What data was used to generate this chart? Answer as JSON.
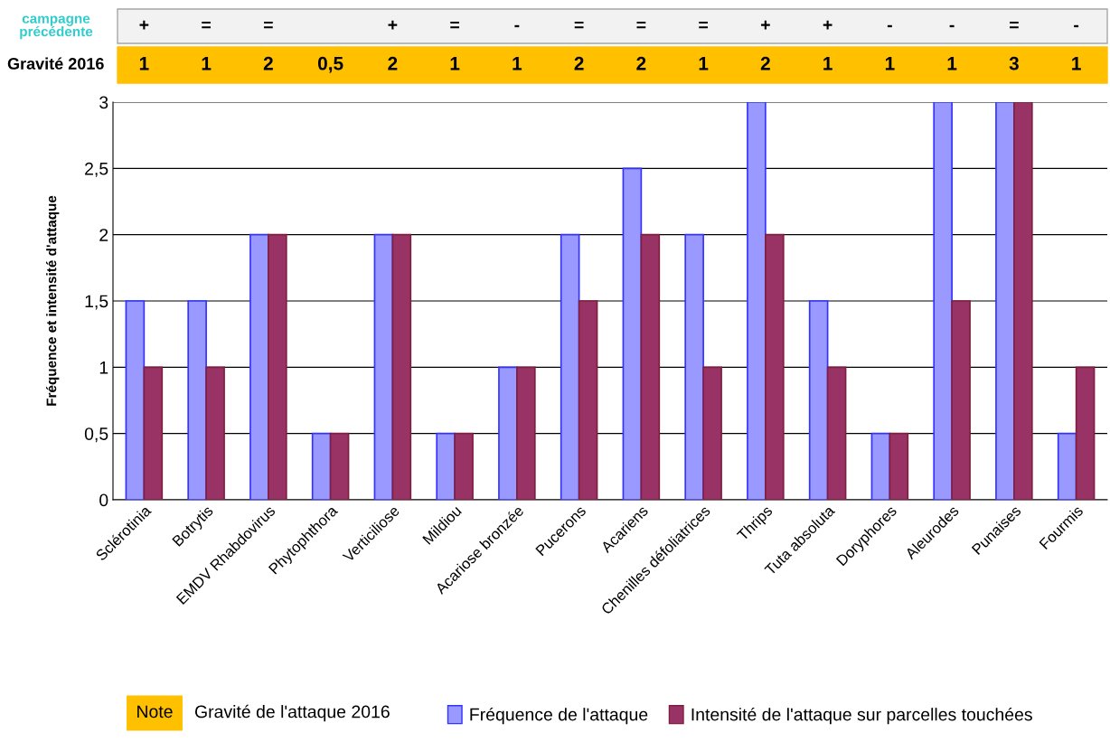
{
  "chart_data": {
    "type": "bar",
    "categories": [
      "Sclérotinia",
      "Botrytis",
      "EMDV Rhabdovirus",
      "Phytophthora",
      "Verticiliose",
      "Mildiou",
      "Acariose bronzée",
      "Pucerons",
      "Acariens",
      "Chenilles défoliatrices",
      "Thrips",
      "Tuta absoluta",
      "Doryphores",
      "Aleurodes",
      "Punaises",
      "Fourmis"
    ],
    "series": [
      {
        "name": "Fréquence de l'attaque",
        "color": "#9999ff",
        "values": [
          1.5,
          1.5,
          2,
          0.5,
          2,
          0.5,
          1,
          2,
          2.5,
          2,
          3,
          1.5,
          0.5,
          3,
          3,
          0.5
        ]
      },
      {
        "name": "Intensité de l'attaque sur parcelles touchées",
        "color": "#993366",
        "values": [
          1,
          1,
          2,
          0.5,
          2,
          0.5,
          1,
          1.5,
          2,
          1,
          2,
          1,
          0.5,
          1.5,
          3,
          1
        ]
      }
    ],
    "ylabel": "Fréquence et intensité d'attaque",
    "ylim": [
      0,
      3
    ],
    "yticks": [
      0,
      {
        "value": 0.5,
        "label": "0,5"
      },
      1,
      {
        "value": 1.5,
        "label": "1,5"
      },
      2,
      {
        "value": 2.5,
        "label": "2,5"
      },
      3
    ],
    "grid": "y",
    "legend": "bottom",
    "annotations": [
      "campagne précédente",
      "+",
      "=",
      "=",
      null,
      "+",
      "=",
      "-",
      "=",
      "=",
      "=",
      "+",
      "+",
      "-",
      "-",
      "=",
      "-",
      "Gravité 2016",
      "1",
      "1",
      "2",
      "0,5",
      "2",
      "1",
      "1",
      "2",
      "2",
      "1",
      "2",
      "1",
      "1",
      "1",
      "3",
      "1",
      "Note",
      "Gravité de l'attaque 2016"
    ]
  }
}
